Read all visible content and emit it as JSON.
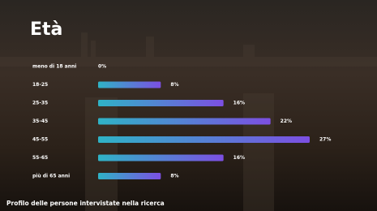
{
  "chart_data": {
    "type": "bar",
    "orientation": "horizontal",
    "title": "Età",
    "categories": [
      "meno di 18 anni",
      "18-25",
      "25-35",
      "35-45",
      "45-55",
      "55-65",
      "più di 65 anni"
    ],
    "values": [
      0,
      8,
      16,
      22,
      27,
      16,
      8
    ],
    "value_labels": [
      "0%",
      "8%",
      "16%",
      "22%",
      "27%",
      "16%",
      "8%"
    ],
    "caption": "Profilo delle persone intervistate nella ricerca"
  }
}
